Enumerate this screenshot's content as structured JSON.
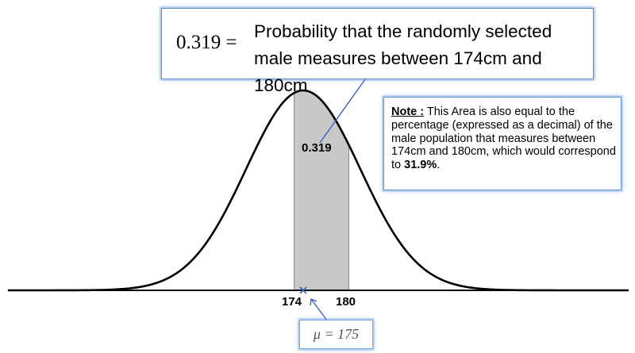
{
  "chart_data": {
    "type": "area",
    "distribution": "normal",
    "mean": 175,
    "shaded_interval": [
      174,
      180
    ],
    "shaded_area": 0.319,
    "tick_labels": [
      "174",
      "180"
    ],
    "curve_color": "#000000",
    "shade_color": "#c8c8c8",
    "mean_marker_color": "#3d5fc4"
  },
  "top_callout": {
    "value": "0.319 =",
    "text": "Probability that the randomly selected male measures between 174cm and 180cm"
  },
  "area_label": "0.319",
  "note": {
    "label": "Note :",
    "text": " This Area is also equal to the percentage (expressed as a decimal) of the male population that measures between 174cm and 180cm, which would correspond to ",
    "percent": "31.9%",
    "end": "."
  },
  "mean_label": "μ = 175",
  "colors": {
    "callout_border": "#5b8fd9",
    "leader_line": "#3d5fc4"
  }
}
